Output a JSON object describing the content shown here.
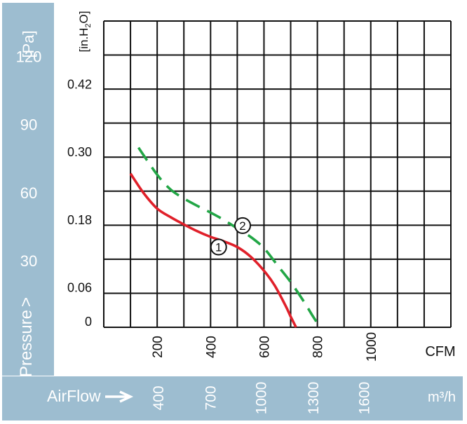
{
  "chart_data": {
    "type": "line",
    "title": "",
    "colors": {
      "band": "#9dbdd0",
      "band_text": "#ffffff",
      "grid": "#111111",
      "label": "#111111"
    },
    "pressure_axis": {
      "title": "Pressure",
      "unit": "[Pa]",
      "range": [
        0,
        135
      ],
      "ticks": [
        {
          "value": 30,
          "label": "30"
        },
        {
          "value": 60,
          "label": "60"
        },
        {
          "value": 90,
          "label": "90"
        },
        {
          "value": 120,
          "label": "120"
        }
      ]
    },
    "inh2o_axis": {
      "unit": "[in.H2O]",
      "range": [
        0,
        0.542
      ],
      "ticks": [
        {
          "value": 0,
          "label": "0"
        },
        {
          "value": 0.06,
          "label": "0.06"
        },
        {
          "value": 0.18,
          "label": "0.18"
        },
        {
          "value": 0.3,
          "label": "0.30"
        },
        {
          "value": 0.42,
          "label": "0.42"
        }
      ]
    },
    "cfm_axis": {
      "unit": "CFM",
      "range": [
        0,
        1300
      ],
      "ticks": [
        {
          "value": 200,
          "label": "200"
        },
        {
          "value": 400,
          "label": "400"
        },
        {
          "value": 600,
          "label": "600"
        },
        {
          "value": 800,
          "label": "800"
        },
        {
          "value": 1000,
          "label": "1000"
        }
      ]
    },
    "airflow_axis": {
      "title": "AirFlow",
      "unit": "m³/h",
      "ticks": [
        {
          "cfm": 205,
          "label": "400"
        },
        {
          "cfm": 400,
          "label": "700"
        },
        {
          "cfm": 590,
          "label": "1000"
        },
        {
          "cfm": 785,
          "label": "1300"
        },
        {
          "cfm": 975,
          "label": "1600"
        }
      ]
    },
    "series": [
      {
        "name": "①",
        "color": "#e0202a",
        "dash": "solid",
        "x": [
          100,
          150,
          200,
          250,
          300,
          350,
          400,
          450,
          500,
          550,
          600,
          640,
          680,
          700,
          720
        ],
        "y": [
          0.272,
          0.237,
          0.21,
          0.195,
          0.182,
          0.17,
          0.16,
          0.152,
          0.142,
          0.125,
          0.1,
          0.074,
          0.039,
          0.019,
          0.0
        ]
      },
      {
        "name": "②",
        "color": "#22a646",
        "dash": "dashed",
        "x": [
          130,
          200,
          250,
          300,
          350,
          400,
          450,
          500,
          550,
          600,
          650,
          700,
          750,
          780,
          810
        ],
        "y": [
          0.318,
          0.27,
          0.244,
          0.228,
          0.215,
          0.203,
          0.19,
          0.175,
          0.16,
          0.14,
          0.11,
          0.08,
          0.045,
          0.022,
          0.0
        ]
      }
    ]
  }
}
